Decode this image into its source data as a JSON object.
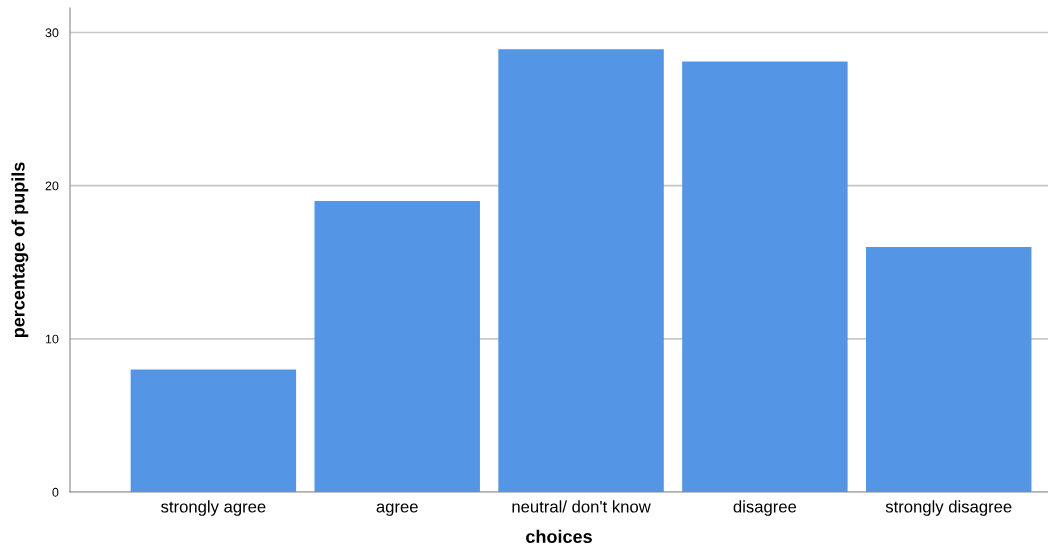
{
  "chart_data": {
    "type": "bar",
    "xlabel": "choices",
    "ylabel": "percentage of pupils",
    "categories": [
      "strongly agree",
      "agree",
      "neutral/ don't know",
      "disagree",
      "strongly disagree"
    ],
    "values": [
      8,
      19,
      28.9,
      28.1,
      16
    ],
    "color": "#5595e5",
    "ylim": [
      0,
      31.6
    ],
    "yticks": [
      0,
      10,
      20,
      30
    ],
    "grid": "y"
  }
}
